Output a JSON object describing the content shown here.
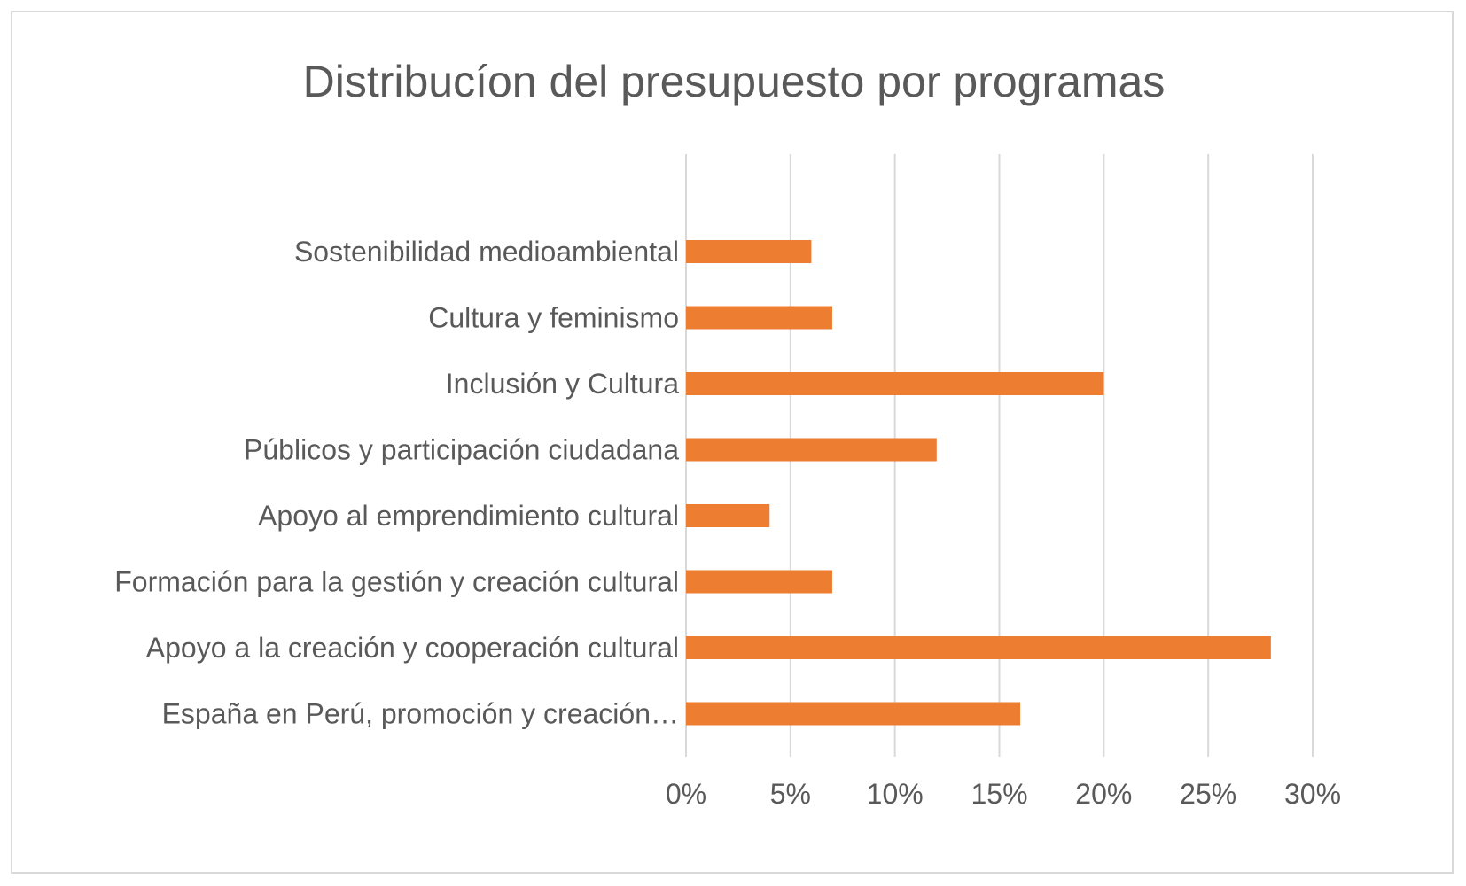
{
  "chart_data": {
    "type": "bar",
    "orientation": "horizontal",
    "title": "Distribucíon del presupuesto por programas",
    "xlabel": "",
    "ylabel": "",
    "xlim": [
      0,
      0.3
    ],
    "tick_values": [
      0,
      0.05,
      0.1,
      0.15,
      0.2,
      0.25,
      0.3
    ],
    "tick_labels": [
      "0%",
      "5%",
      "10%",
      "15%",
      "20%",
      "25%",
      "30%"
    ],
    "grid": true,
    "legend": "none",
    "bar_color": "#ed7d31",
    "gridline_color": "#d9d9d9",
    "text_color": "#595959",
    "categories": [
      "Sostenibilidad medioambiental",
      "Cultura y feminismo",
      "Inclusión y Cultura",
      "Públicos y participación ciudadana",
      "Apoyo al emprendimiento cultural",
      "Formación para la gestión y creación cultural",
      "Apoyo a la creación y cooperación cultural",
      "España en Perú, promoción y creación…"
    ],
    "values": [
      0.06,
      0.07,
      0.2,
      0.12,
      0.04,
      0.07,
      0.28,
      0.16
    ]
  }
}
